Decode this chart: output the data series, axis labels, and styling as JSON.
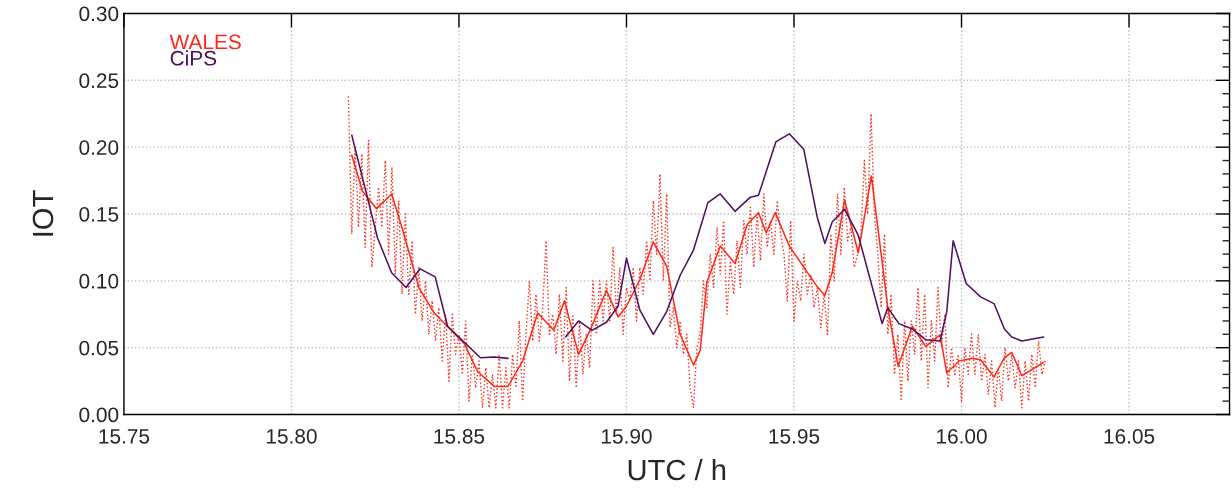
{
  "chart_data": {
    "type": "line",
    "xlabel": "UTC / h",
    "ylabel": "IOT",
    "xlim": [
      15.75,
      16.08
    ],
    "xticks": [
      {
        "value": 15.75,
        "label": "15.75"
      },
      {
        "value": 15.8,
        "label": "15.80"
      },
      {
        "value": 15.85,
        "label": "15.85"
      },
      {
        "value": 15.9,
        "label": "15.90"
      },
      {
        "value": 15.95,
        "label": "15.95"
      },
      {
        "value": 16.0,
        "label": "16.00"
      },
      {
        "value": 16.05,
        "label": "16.05"
      }
    ],
    "ylim": [
      0,
      0.3
    ],
    "yticks": [
      {
        "value": 0,
        "label": "0.00"
      },
      {
        "value": 0.05,
        "label": "0.05"
      },
      {
        "value": 0.1,
        "label": "0.10"
      },
      {
        "value": 0.15,
        "label": "0.15"
      },
      {
        "value": 0.2,
        "label": "0.20"
      },
      {
        "value": 0.25,
        "label": "0.25"
      },
      {
        "value": 0.3,
        "label": "0.30"
      }
    ],
    "grid": true,
    "legend": "top left",
    "marker": "none",
    "series": [
      {
        "color": "#ff2a1a",
        "line_style": "dotted",
        "x": [
          15.817,
          15.818,
          15.819,
          15.82,
          15.821,
          15.822,
          15.823,
          15.824,
          15.826,
          15.827,
          15.828,
          15.829,
          15.83,
          15.831,
          15.832,
          15.833,
          15.834,
          15.835,
          15.836,
          15.837,
          15.838,
          15.839,
          15.84,
          15.841,
          15.842,
          15.843,
          15.844,
          15.845,
          15.846,
          15.847,
          15.848,
          15.849,
          15.85,
          15.851,
          15.852,
          15.853,
          15.854,
          15.855,
          15.856,
          15.857,
          15.858,
          15.859,
          15.86,
          15.861,
          15.862,
          15.863,
          15.864,
          15.865,
          15.866,
          15.867,
          15.868,
          15.869,
          15.87,
          15.871,
          15.872,
          15.873,
          15.874,
          15.875,
          15.876,
          15.877,
          15.878,
          15.879,
          15.88,
          15.881,
          15.882,
          15.883,
          15.884,
          15.885,
          15.886,
          15.887,
          15.888,
          15.889,
          15.89,
          15.891,
          15.892,
          15.893,
          15.894,
          15.895,
          15.896,
          15.897,
          15.898,
          15.899,
          15.9,
          15.901,
          15.902,
          15.903,
          15.904,
          15.905,
          15.906,
          15.907,
          15.908,
          15.909,
          15.91,
          15.911,
          15.912,
          15.913,
          15.914,
          15.915,
          15.916,
          15.917,
          15.918,
          15.919,
          15.92,
          15.921,
          15.922,
          15.923,
          15.924,
          15.925,
          15.926,
          15.927,
          15.928,
          15.929,
          15.93,
          15.931,
          15.932,
          15.933,
          15.934,
          15.935,
          15.936,
          15.937,
          15.938,
          15.939,
          15.94,
          15.941,
          15.942,
          15.943,
          15.944,
          15.945,
          15.946,
          15.947,
          15.948,
          15.949,
          15.95,
          15.951,
          15.952,
          15.953,
          15.954,
          15.955,
          15.956,
          15.957,
          15.958,
          15.959,
          15.96,
          15.961,
          15.962,
          15.963,
          15.964,
          15.965,
          15.966,
          15.967,
          15.968,
          15.969,
          15.97,
          15.971,
          15.972,
          15.973,
          15.974,
          15.975,
          15.976,
          15.977,
          15.978,
          15.979,
          15.98,
          15.981,
          15.982,
          15.983,
          15.984,
          15.985,
          15.986,
          15.987,
          15.988,
          15.989,
          15.99,
          15.991,
          15.992,
          15.993,
          15.994,
          15.995,
          15.996,
          15.997,
          15.998,
          15.999,
          16.0,
          16.001,
          16.002,
          16.003,
          16.004,
          16.005,
          16.006,
          16.007,
          16.008,
          16.009,
          16.01,
          16.011,
          16.012,
          16.013,
          16.014,
          16.015,
          16.016,
          16.017,
          16.018,
          16.019,
          16.02,
          16.021,
          16.022,
          16.023,
          16.024,
          16.025
        ],
        "values": [
          0.238,
          0.135,
          0.2,
          0.14,
          0.195,
          0.125,
          0.205,
          0.11,
          0.17,
          0.14,
          0.19,
          0.12,
          0.185,
          0.105,
          0.16,
          0.09,
          0.15,
          0.09,
          0.13,
          0.075,
          0.11,
          0.07,
          0.1,
          0.06,
          0.085,
          0.055,
          0.08,
          0.04,
          0.075,
          0.025,
          0.075,
          0.045,
          0.06,
          0.03,
          0.07,
          0.01,
          0.045,
          0.02,
          0.04,
          0.005,
          0.035,
          0.005,
          0.03,
          0.005,
          0.045,
          0.005,
          0.035,
          0.005,
          0.045,
          0.02,
          0.07,
          0.01,
          0.06,
          0.1,
          0.055,
          0.09,
          0.055,
          0.08,
          0.13,
          0.06,
          0.075,
          0.045,
          0.09,
          0.04,
          0.095,
          0.025,
          0.075,
          0.02,
          0.07,
          0.03,
          0.06,
          0.035,
          0.1,
          0.06,
          0.1,
          0.07,
          0.1,
          0.07,
          0.125,
          0.075,
          0.11,
          0.06,
          0.095,
          0.085,
          0.11,
          0.07,
          0.11,
          0.09,
          0.13,
          0.1,
          0.16,
          0.12,
          0.18,
          0.1,
          0.165,
          0.065,
          0.08,
          0.05,
          0.07,
          0.045,
          0.06,
          0.02,
          0.005,
          0.05,
          0.06,
          0.1,
          0.08,
          0.12,
          0.095,
          0.14,
          0.105,
          0.145,
          0.075,
          0.115,
          0.09,
          0.13,
          0.095,
          0.145,
          0.12,
          0.155,
          0.11,
          0.15,
          0.115,
          0.165,
          0.125,
          0.145,
          0.12,
          0.16,
          0.135,
          0.12,
          0.085,
          0.145,
          0.07,
          0.1,
          0.085,
          0.12,
          0.09,
          0.105,
          0.08,
          0.095,
          0.065,
          0.09,
          0.06,
          0.135,
          0.1,
          0.165,
          0.12,
          0.17,
          0.13,
          0.14,
          0.11,
          0.12,
          0.135,
          0.19,
          0.15,
          0.225,
          0.15,
          0.12,
          0.08,
          0.135,
          0.06,
          0.09,
          0.03,
          0.06,
          0.01,
          0.07,
          0.025,
          0.07,
          0.045,
          0.095,
          0.04,
          0.09,
          0.02,
          0.07,
          0.04,
          0.095,
          0.05,
          0.075,
          0.02,
          0.05,
          0.03,
          0.045,
          0.01,
          0.05,
          0.03,
          0.06,
          0.03,
          0.06,
          0.025,
          0.045,
          0.015,
          0.04,
          0.005,
          0.035,
          0.01,
          0.05,
          0.025,
          0.045,
          0.02,
          0.04,
          0.005,
          0.04,
          0.01,
          0.045,
          0.02,
          0.055,
          0.03,
          0.04
        ]
      },
      {
        "name": "WALES",
        "color": "#ff2a1a",
        "line_style": "solid",
        "x": [
          15.818,
          15.8212,
          15.8254,
          15.8299,
          15.8331,
          15.8381,
          15.8426,
          15.8471,
          15.8516,
          15.8556,
          15.8606,
          15.8646,
          15.869,
          15.8735,
          15.8783,
          15.8815,
          15.8857,
          15.8895,
          15.894,
          15.8975,
          15.9,
          15.904,
          15.908,
          15.912,
          15.916,
          15.92,
          15.922,
          15.924,
          15.928,
          15.9324,
          15.936,
          15.9394,
          15.9417,
          15.9444,
          15.9486,
          15.9569,
          15.9592,
          15.9614,
          15.9651,
          15.9692,
          15.9731,
          15.978,
          15.9811,
          15.9853,
          15.9893,
          15.9936,
          15.9956,
          15.9993,
          16.0033,
          16.0057,
          16.0097,
          16.0128,
          16.015,
          16.018,
          16.0245
        ],
        "values": [
          0.194,
          0.167,
          0.154,
          0.165,
          0.139,
          0.0945,
          0.076,
          0.0645,
          0.053,
          0.032,
          0.021,
          0.021,
          0.04,
          0.076,
          0.063,
          0.085,
          0.045,
          0.065,
          0.093,
          0.073,
          0.081,
          0.101,
          0.129,
          0.111,
          0.06,
          0.037,
          0.048,
          0.099,
          0.126,
          0.113,
          0.142,
          0.151,
          0.136,
          0.151,
          0.126,
          0.0957,
          0.089,
          0.106,
          0.1605,
          0.121,
          0.1785,
          0.08,
          0.036,
          0.066,
          0.051,
          0.0595,
          0.031,
          0.04,
          0.042,
          0.041,
          0.028,
          0.0425,
          0.0465,
          0.029,
          0.039
        ]
      },
      {
        "name": "CiPS",
        "color": "#4b0f5e",
        "line_style": "solid",
        "x": [
          15.818,
          15.8257,
          15.8299,
          15.8342,
          15.8384,
          15.8429,
          15.8466,
          15.8564,
          15.8604,
          15.8646,
          15.873,
          15.8818,
          15.8857,
          15.8897,
          15.894,
          15.8975,
          15.9,
          15.904,
          15.908,
          15.912,
          15.916,
          15.92,
          15.9243,
          15.928,
          15.9324,
          15.937,
          15.9394,
          15.9446,
          15.9486,
          15.9529,
          15.9569,
          15.9592,
          15.9614,
          15.9651,
          15.9692,
          15.9763,
          15.978,
          15.9813,
          15.9853,
          15.9893,
          15.9936,
          15.9956,
          15.9975,
          16.0014,
          16.0057,
          16.0097,
          16.0128,
          16.015,
          16.018,
          16.0245
        ],
        "values": [
          0.209,
          0.132,
          0.106,
          0.095,
          0.109,
          0.103,
          0.066,
          0.0425,
          0.043,
          0.042,
          null,
          0.058,
          0.07,
          0.063,
          0.069,
          0.081,
          0.117,
          0.078,
          0.06,
          0.077,
          0.104,
          0.123,
          0.1585,
          0.165,
          0.152,
          0.1626,
          0.164,
          0.204,
          0.21,
          0.1985,
          0.148,
          0.128,
          0.144,
          0.1536,
          0.134,
          0.068,
          0.08,
          0.068,
          0.064,
          0.056,
          0.055,
          0.077,
          0.13,
          0.098,
          0.088,
          0.083,
          0.064,
          0.058,
          0.055,
          0.058
        ]
      }
    ]
  }
}
